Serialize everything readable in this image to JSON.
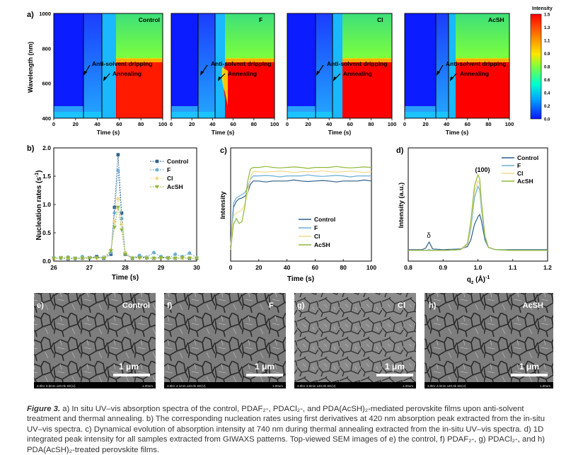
{
  "colors": {
    "control": "#2e5f8a",
    "f": "#6aaed6",
    "cl": "#f2d88a",
    "acsh": "#8fb83b",
    "colorbar_stops": [
      "#0b16ff",
      "#00b8ff",
      "#00ffc8",
      "#7dff3c",
      "#ffe600",
      "#ff7a00",
      "#ff0000"
    ]
  },
  "panel_a": {
    "label": "a)",
    "ylabel": "Wavelength (nm)",
    "xlabel": "Time (s)",
    "xticks": [
      "0",
      "20",
      "40",
      "60",
      "80",
      "100"
    ],
    "yticks": [
      "1000",
      "800",
      "600",
      "400"
    ],
    "annot_dripping": "Anti-solvent dripping",
    "annot_annealing": "Annealing",
    "maps": [
      "Control",
      "F",
      "Cl",
      "AcSH"
    ],
    "colorbar_title": "Intensity",
    "colorbar_ticks": [
      "1.5",
      "1.3",
      "1.1",
      "0.9",
      "0.8",
      "0.6",
      "0.4",
      "0.2",
      "0.0"
    ]
  },
  "panel_b": {
    "label": "b)",
    "ylabel": "Nucleation rates (s",
    "ylabel_sup": "-1",
    "ylabel_end": ")",
    "xlabel": "Time (s)",
    "xticks": [
      "26",
      "27",
      "28",
      "29",
      "30"
    ],
    "yticks": [
      "0.0",
      "0.5",
      "1.0",
      "1.5",
      "2.0"
    ]
  },
  "panel_c": {
    "label": "c)",
    "ylabel": "Intensity",
    "xlabel": "Time (s)",
    "xticks": [
      "0",
      "20",
      "40",
      "60",
      "80",
      "100"
    ]
  },
  "panel_d": {
    "label": "d)",
    "ylabel": "Intensity (a.u.)",
    "xlabel_main": "q",
    "xlabel_sub": "z",
    "xlabel_unit": " (Å)",
    "xlabel_sup": "-1",
    "xticks": [
      "0.8",
      "0.9",
      "1.0",
      "1.1",
      "1.2"
    ],
    "peak_label": "(100)",
    "delta_label": "δ"
  },
  "legend": [
    "Control",
    "F",
    "Cl",
    "AcSH"
  ],
  "sem": {
    "panels": [
      {
        "label": "e)",
        "name": "Control",
        "footer": "3.0kV 3.9mm x40.0k SE(U)",
        "scalebar_end": "1.00um"
      },
      {
        "label": "f)",
        "name": "F",
        "footer": "3.0kV 4.1mm x40.0k SE(U)",
        "scalebar_end": "1.00um"
      },
      {
        "label": "g)",
        "name": "Cl",
        "footer": "3.0kV 3.8mm x40.0k SE(U)",
        "scalebar_end": "1.00um"
      },
      {
        "label": "h)",
        "name": "AcSH",
        "footer": "3.0kV 4.0mm x40.0k SE(U)",
        "scalebar_end": "1.00um"
      }
    ],
    "scale_text": "1 μm"
  },
  "chart_data": [
    {
      "type": "heatmap",
      "title": "In situ UV–vis absorption spectra",
      "xlabel": "Time (s)",
      "ylabel": "Wavelength (nm)",
      "xlim": [
        0,
        100
      ],
      "ylim": [
        400,
        1000
      ],
      "panels": [
        {
          "name": "Control",
          "drip_time_s": 28,
          "anneal_time_s": 45
        },
        {
          "name": "F",
          "drip_time_s": 28,
          "anneal_time_s": 40
        },
        {
          "name": "Cl",
          "drip_time_s": 28,
          "anneal_time_s": 40
        },
        {
          "name": "AcSH",
          "drip_time_s": 28,
          "anneal_time_s": 38
        }
      ],
      "colorbar": {
        "label": "Intensity",
        "range": [
          0.0,
          1.5
        ]
      }
    },
    {
      "type": "line",
      "xlabel": "Time (s)",
      "ylabel": "Nucleation rates (s-1)",
      "xlim": [
        26,
        30
      ],
      "ylim": [
        0,
        2.0
      ],
      "x": [
        26.0,
        26.2,
        26.4,
        26.6,
        26.8,
        27.0,
        27.2,
        27.4,
        27.6,
        27.7,
        27.8,
        27.9,
        28.0,
        28.2,
        28.4,
        28.6,
        28.8,
        29.0,
        29.2,
        29.4,
        29.6,
        29.8,
        30.0
      ],
      "series": [
        {
          "name": "Control",
          "values": [
            0.05,
            0.06,
            0.04,
            0.05,
            0.05,
            0.06,
            0.08,
            0.05,
            0.12,
            0.95,
            1.88,
            0.85,
            0.12,
            0.05,
            0.08,
            0.06,
            0.05,
            0.07,
            0.06,
            0.05,
            0.06,
            0.05,
            0.05
          ]
        },
        {
          "name": "F",
          "values": [
            0.06,
            0.05,
            0.07,
            0.04,
            0.08,
            0.05,
            0.06,
            0.07,
            0.15,
            0.85,
            1.6,
            0.75,
            0.15,
            0.06,
            0.1,
            0.07,
            0.15,
            0.08,
            0.05,
            0.12,
            0.08,
            0.14,
            0.06
          ]
        },
        {
          "name": "Cl",
          "values": [
            0.04,
            0.06,
            0.05,
            0.05,
            0.05,
            0.06,
            0.05,
            0.06,
            0.2,
            0.7,
            1.1,
            0.65,
            0.15,
            0.06,
            0.05,
            0.06,
            0.05,
            0.05,
            0.06,
            0.05,
            0.05,
            0.06,
            0.05
          ]
        },
        {
          "name": "AcSH",
          "values": [
            0.05,
            0.05,
            0.06,
            0.04,
            0.05,
            0.05,
            0.06,
            0.05,
            0.18,
            0.6,
            0.95,
            0.55,
            0.12,
            0.05,
            0.06,
            0.05,
            0.05,
            0.06,
            0.05,
            0.05,
            0.06,
            0.05,
            0.05
          ]
        }
      ]
    },
    {
      "type": "line",
      "xlabel": "Time (s)",
      "ylabel": "Intensity",
      "xlim": [
        0,
        100
      ],
      "x": [
        0,
        2,
        4,
        6,
        8,
        10,
        12,
        14,
        16,
        18,
        20,
        30,
        40,
        50,
        60,
        70,
        80,
        90,
        100
      ],
      "series": [
        {
          "name": "Control",
          "values": [
            0.05,
            0.55,
            0.62,
            0.65,
            0.66,
            0.68,
            0.72,
            0.82,
            0.86,
            0.86,
            0.86,
            0.86,
            0.86,
            0.86,
            0.86,
            0.86,
            0.86,
            0.86,
            0.86
          ]
        },
        {
          "name": "F",
          "values": [
            0.1,
            0.6,
            0.66,
            0.68,
            0.7,
            0.72,
            0.78,
            0.88,
            0.92,
            0.92,
            0.92,
            0.92,
            0.92,
            0.92,
            0.92,
            0.92,
            0.92,
            0.92,
            0.92
          ]
        },
        {
          "name": "Cl",
          "values": [
            0.1,
            0.45,
            0.48,
            0.5,
            0.52,
            0.58,
            0.72,
            0.9,
            0.97,
            0.97,
            0.97,
            0.97,
            0.97,
            0.97,
            0.97,
            0.97,
            0.97,
            0.97,
            0.97
          ]
        },
        {
          "name": "AcSH",
          "values": [
            0.05,
            0.35,
            0.42,
            0.36,
            0.38,
            0.55,
            0.85,
            1.0,
            1.02,
            1.02,
            1.02,
            1.02,
            1.02,
            1.02,
            1.02,
            1.02,
            1.02,
            1.02,
            1.02
          ]
        }
      ]
    },
    {
      "type": "line",
      "xlabel": "qz (Å)-1",
      "ylabel": "Intensity (a.u.)",
      "xlim": [
        0.8,
        1.2
      ],
      "x": [
        0.8,
        0.84,
        0.85,
        0.86,
        0.87,
        0.9,
        0.95,
        0.97,
        0.98,
        0.99,
        1.0,
        1.005,
        1.01,
        1.02,
        1.03,
        1.05,
        1.1,
        1.15,
        1.2
      ],
      "series": [
        {
          "name": "Control",
          "values": [
            0.02,
            0.02,
            0.04,
            0.12,
            0.03,
            0.02,
            0.03,
            0.06,
            0.15,
            0.35,
            0.45,
            0.48,
            0.4,
            0.15,
            0.05,
            0.02,
            0.02,
            0.02,
            0.02
          ]
        },
        {
          "name": "F",
          "values": [
            0.01,
            0.01,
            0.01,
            0.02,
            0.01,
            0.01,
            0.02,
            0.08,
            0.3,
            0.7,
            0.85,
            0.8,
            0.55,
            0.18,
            0.05,
            0.02,
            0.01,
            0.01,
            0.01
          ]
        },
        {
          "name": "Cl",
          "values": [
            0.01,
            0.01,
            0.01,
            0.01,
            0.01,
            0.01,
            0.02,
            0.08,
            0.35,
            0.78,
            0.92,
            0.88,
            0.6,
            0.2,
            0.05,
            0.02,
            0.01,
            0.01,
            0.01
          ]
        },
        {
          "name": "AcSH",
          "values": [
            0.01,
            0.01,
            0.01,
            0.01,
            0.01,
            0.01,
            0.02,
            0.1,
            0.4,
            0.85,
            1.0,
            0.95,
            0.65,
            0.2,
            0.05,
            0.02,
            0.01,
            0.01,
            0.01
          ]
        }
      ],
      "annotations": [
        {
          "text": "(100)",
          "x": 1.0
        },
        {
          "text": "δ",
          "x": 0.86
        }
      ]
    }
  ],
  "caption": {
    "label": "Figure 3.",
    "text": " a) In situ UV–vis absorption spectra of the control, PDAF₂-, PDACl₂-, and PDA(AcSH)₂-mediated perovskite films upon anti-solvent treatment and thermal annealing. b) The corresponding nucleation rates using first derivatives at 420 nm absorption peak extracted from the in-situ UV–vis spectra. c) Dynamical evolution of absorption intensity at 740 nm during thermal annealing extracted from the in-situ UV–vis spectra. d) 1D integrated peak intensity for all samples extracted from GIWAXS patterns. Top-viewed SEM images of e) the control, f) PDAF₂-, g) PDACl₂-, and h) PDA(AcSH)₂-treated perovskite films."
  }
}
